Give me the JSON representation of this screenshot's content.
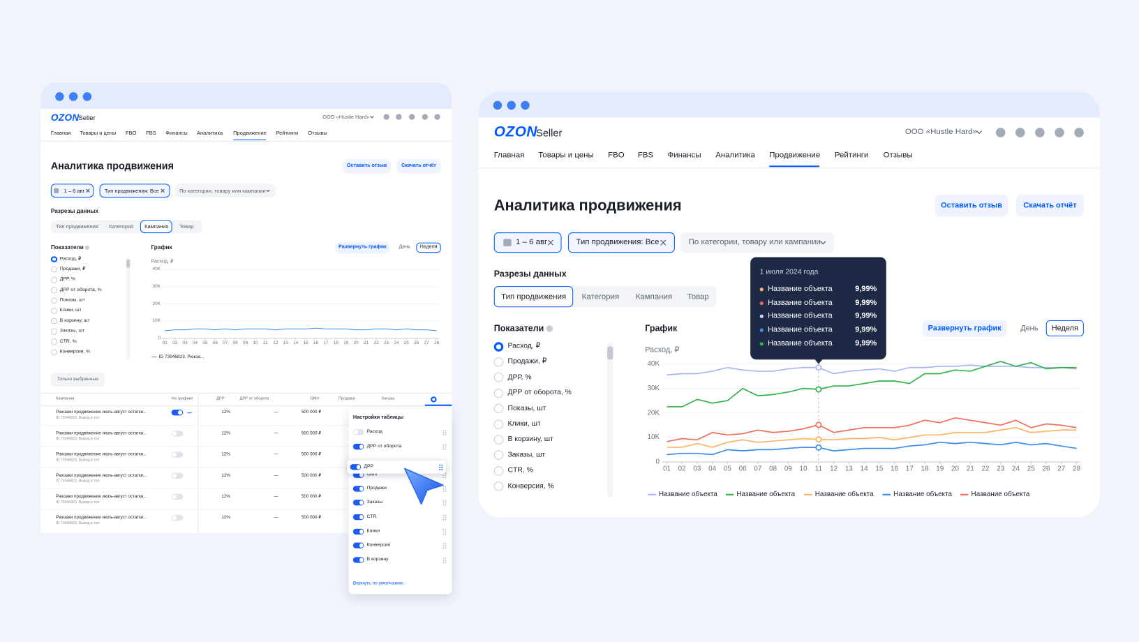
{
  "left_window": {
    "logo": "OZON",
    "logo_suffix": "Seller",
    "company": "ООО «Hustle Hard»",
    "nav": [
      "Главная",
      "Товары и цены",
      "FBO",
      "FBS",
      "Финансы",
      "Аналитика",
      "Продвижение",
      "Рейтинги",
      "Отзывы"
    ],
    "title": "Аналитика продвижения",
    "buttons": [
      "Оставить отзыв",
      "Скачать отчёт"
    ],
    "filters": [
      "1 – 6 авг",
      "Тип продвижения: Все",
      "По категории, товару или кампании"
    ],
    "sections_label": "Разрезы данных",
    "tabs": [
      "Тип продвижения",
      "Категория",
      "Кампания",
      "Товар"
    ],
    "metrics_label": "Показатели",
    "metrics": [
      "Расход, ₽",
      "Продажи, ₽",
      "ДРР, %",
      "ДРР от оборота, %",
      "Показы, шт",
      "Клики, шт",
      "В корзину, шт",
      "Заказы, шт",
      "CTR, %",
      "Конверсия, %"
    ],
    "chart": {
      "title": "График",
      "y_label": "Расход, ₽",
      "expand": "Развернуть график",
      "periods": [
        "День",
        "Неделя"
      ],
      "categories": [
        "01",
        "02",
        "03",
        "04",
        "05",
        "06",
        "07",
        "08",
        "09",
        "10",
        "11",
        "12",
        "13",
        "14",
        "15",
        "16",
        "17",
        "18",
        "19",
        "20",
        "21",
        "22",
        "23",
        "24",
        "25",
        "26",
        "27",
        "28"
      ],
      "ylim": [
        0,
        40000
      ],
      "yticks": [
        0,
        {
          "value": 10000,
          "label": "10K"
        },
        {
          "value": 20000,
          "label": "20K"
        },
        {
          "value": 30000,
          "label": "30K"
        },
        {
          "value": 40000,
          "label": "40K"
        }
      ],
      "series": [
        {
          "name": "ID 73946823. Рюкза...",
          "color": "#3b8cf0",
          "values": [
            4500,
            5000,
            5000,
            5500,
            5500,
            5000,
            5500,
            5000,
            5500,
            5500,
            5500,
            5000,
            5500,
            5500,
            5500,
            6000,
            5500,
            5500,
            5500,
            5000,
            5000,
            5500,
            5500,
            5000,
            5500,
            5000,
            5000,
            4500
          ]
        }
      ]
    },
    "only_selected": "Только выбранные",
    "table": {
      "columns": [
        "Кампании",
        "На графике",
        "ДРР",
        "ДРР от оборота",
        "GMV",
        "Продажи",
        "Заказы"
      ],
      "rows": [
        {
          "name": "Рюкзаки продвижение июль-август остатки...",
          "id": "ID 73946823, Вывод в топ",
          "on_chart": true,
          "drr": "12%",
          "drr_turnover": "—",
          "gmv": "500 000 ₽"
        },
        {
          "name": "Рюкзаки продвижение июль-август остатки...",
          "id": "ID 73946823, Вывод в топ",
          "on_chart": false,
          "drr": "12%",
          "drr_turnover": "—",
          "gmv": "500 000 ₽"
        },
        {
          "name": "Рюкзаки продвижение июль-август остатки...",
          "id": "ID 73946823, Вывод в топ",
          "on_chart": false,
          "drr": "12%",
          "drr_turnover": "—",
          "gmv": "500 000 ₽"
        },
        {
          "name": "Рюкзаки продвижение июль-август остатки...",
          "id": "ID 73946823, Вывод в топ",
          "on_chart": false,
          "drr": "12%",
          "drr_turnover": "—",
          "gmv": "500 000 ₽"
        },
        {
          "name": "Рюкзаки продвижение июль-август остатки...",
          "id": "ID 73946823, Вывод в топ",
          "on_chart": false,
          "drr": "12%",
          "drr_turnover": "—",
          "gmv": "500 000 ₽"
        },
        {
          "name": "Рюкзаки продвижение июль-август остатки...",
          "id": "ID 73946823, Вывод в топ",
          "on_chart": false,
          "drr": "12%",
          "drr_turnover": "—",
          "gmv": "500 000 ₽"
        }
      ]
    },
    "settings": {
      "title": "Настройки таблицы",
      "items": [
        {
          "label": "Расход",
          "on": false
        },
        {
          "label": "ДРР от оборота",
          "on": true
        },
        {
          "label": "ДРР",
          "on": true
        },
        {
          "label": "GMV",
          "on": true
        },
        {
          "label": "Продажи",
          "on": true
        },
        {
          "label": "Заказы",
          "on": true
        },
        {
          "label": "CTR",
          "on": true
        },
        {
          "label": "Клики",
          "on": true
        },
        {
          "label": "Конверсия",
          "on": true
        },
        {
          "label": "В корзину",
          "on": true
        }
      ],
      "reset": "Вернуть по умолчанию"
    }
  },
  "right_window": {
    "logo": "OZON",
    "logo_suffix": "Seller",
    "company": "ООО «Hustle Hard»",
    "nav": [
      "Главная",
      "Товары и цены",
      "FBO",
      "FBS",
      "Финансы",
      "Аналитика",
      "Продвижение",
      "Рейтинги",
      "Отзывы"
    ],
    "title": "Аналитика продвижения",
    "buttons": [
      "Оставить отзыв",
      "Скачать отчёт"
    ],
    "filters": [
      "1 – 6 авг",
      "Тип продвижения: Все",
      "По категории, товару или кампании"
    ],
    "sections_label": "Разрезы данных",
    "tabs": [
      "Тип продвижения",
      "Категория",
      "Кампания",
      "Товар"
    ],
    "metrics_label": "Показатели",
    "metrics": [
      "Расход, ₽",
      "Продажи, ₽",
      "ДРР, %",
      "ДРР от оборота, %",
      "Показы, шт",
      "Клики, шт",
      "В корзину, шт",
      "Заказы, шт",
      "CTR, %",
      "Конверсия, %"
    ],
    "chart": {
      "title": "График",
      "y_label": "Расход, ₽",
      "expand": "Развернуть график",
      "periods": [
        "День",
        "Неделя"
      ],
      "categories": [
        "01",
        "02",
        "03",
        "04",
        "05",
        "06",
        "07",
        "08",
        "09",
        "10",
        "11",
        "12",
        "13",
        "14",
        "15",
        "16",
        "17",
        "18",
        "19",
        "20",
        "21",
        "22",
        "23",
        "24",
        "25",
        "26",
        "27",
        "28"
      ],
      "ylim": [
        0,
        40000
      ],
      "yticks": [
        0,
        {
          "value": 10000,
          "label": "10K"
        },
        {
          "value": 20000,
          "label": "20K"
        },
        {
          "value": 30000,
          "label": "30K"
        },
        {
          "value": 40000,
          "label": "40K"
        }
      ],
      "series": [
        {
          "name": "Название объекта",
          "color": "#a7b5f2",
          "values": [
            35500,
            36000,
            36000,
            37000,
            38500,
            37500,
            37000,
            37000,
            38000,
            38500,
            38500,
            36000,
            37000,
            37500,
            38000,
            37000,
            38500,
            38500,
            39000,
            39000,
            39500,
            39000,
            39000,
            39000,
            38500,
            38500,
            38500,
            38000
          ]
        },
        {
          "name": "Название объекта",
          "color": "#2eb24a",
          "values": [
            22500,
            22500,
            25500,
            24000,
            25000,
            30000,
            27000,
            27500,
            28500,
            30000,
            29600,
            31000,
            31000,
            32000,
            33000,
            33000,
            32000,
            36000,
            36000,
            37500,
            37000,
            39000,
            41000,
            39000,
            40500,
            38000,
            38500,
            38500
          ]
        },
        {
          "name": "Название объекта",
          "color": "#fbb360",
          "values": [
            6000,
            6000,
            7500,
            6000,
            8000,
            9000,
            8000,
            8500,
            9000,
            9500,
            9200,
            9000,
            9500,
            9500,
            10000,
            9000,
            10000,
            11000,
            11000,
            12000,
            12000,
            12000,
            13000,
            14000,
            12000,
            12500,
            13000,
            13000
          ]
        },
        {
          "name": "Название объекта",
          "color": "#3b8cf0",
          "values": [
            3000,
            3500,
            3500,
            3000,
            5000,
            4500,
            5000,
            5000,
            5500,
            6000,
            5900,
            4500,
            5000,
            5500,
            5500,
            5500,
            6500,
            7000,
            8000,
            7500,
            8000,
            7500,
            7000,
            8000,
            7000,
            7500,
            6500,
            5500
          ]
        },
        {
          "name": "Название объекта",
          "color": "#f26b5b",
          "values": [
            8300,
            9500,
            9000,
            12000,
            11000,
            11500,
            13000,
            12000,
            12500,
            13500,
            15100,
            12000,
            13000,
            14000,
            14000,
            14000,
            15000,
            17000,
            16000,
            18000,
            17000,
            16000,
            15000,
            17000,
            14000,
            15500,
            15000,
            14000
          ]
        }
      ]
    },
    "tooltip": {
      "date": "1 июля 2024 года",
      "items": [
        {
          "name": "Название объекта",
          "color": "#fbb360",
          "value": "9,99%"
        },
        {
          "name": "Название объекта",
          "color": "#f26b5b",
          "value": "9,99%"
        },
        {
          "name": "Название объекта",
          "color": "#c9d2f7",
          "value": "9,99%"
        },
        {
          "name": "Название объекта",
          "color": "#3b8cf0",
          "value": "9,99%"
        },
        {
          "name": "Название объекта",
          "color": "#2eb24a",
          "value": "9,99%"
        }
      ]
    }
  }
}
